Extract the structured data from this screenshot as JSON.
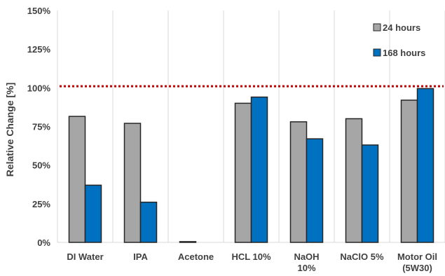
{
  "chart_data": {
    "type": "bar",
    "categories": [
      [
        "DI Water"
      ],
      [
        "IPA"
      ],
      [
        "Acetone"
      ],
      [
        "HCL 10%"
      ],
      [
        "NaOH",
        "10%"
      ],
      [
        "NaClO 5%"
      ],
      [
        "Motor Oil",
        "(5W30)"
      ]
    ],
    "series": [
      {
        "name": "24 hours",
        "color": "#a6a6a6",
        "values": [
          81.5,
          77,
          0.5,
          90,
          78,
          80,
          92
        ]
      },
      {
        "name": "168 hours",
        "color": "#0070c0",
        "values": [
          37,
          26,
          0,
          94,
          67,
          63,
          99.5
        ]
      }
    ],
    "ylabel": "Relative Change [%]",
    "xlabel": "",
    "ylim": [
      0,
      150
    ],
    "yticks": [
      0,
      25,
      50,
      75,
      100,
      125,
      150
    ],
    "ytick_labels": [
      "0%",
      "25%",
      "50%",
      "75%",
      "100%",
      "125%",
      "150%"
    ],
    "reference_line": {
      "value": 101,
      "color": "#c00000",
      "style": "dotted"
    },
    "grid": "vertical gridlines between categories",
    "legend": "top-right"
  }
}
